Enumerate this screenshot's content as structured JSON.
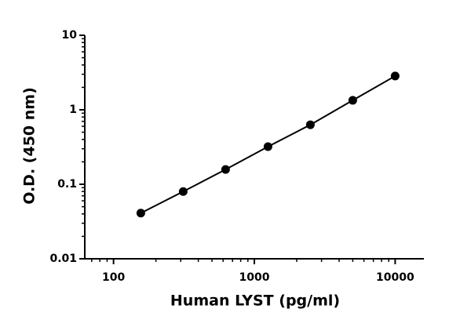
{
  "chart_data": {
    "type": "scatter",
    "x_label": "Human LYST (pg/ml)",
    "y_label": "O.D. (450 nm)",
    "x": [
      156.25,
      312.5,
      625,
      1250,
      2500,
      5000,
      10000
    ],
    "series": [
      {
        "color": "#000000",
        "values": [
          0.041,
          0.08,
          0.158,
          0.32,
          0.63,
          1.34,
          2.84
        ]
      }
    ],
    "line": true,
    "xscale": "log",
    "yscale": "log",
    "xlim": [
      62.5,
      16000
    ],
    "ylim": [
      0.01,
      10
    ],
    "xticks": [
      100,
      1000,
      10000
    ],
    "yticks": [
      0.01,
      0.1,
      1,
      10
    ],
    "xminor_ticks": [
      70,
      80,
      90,
      200,
      300,
      400,
      500,
      600,
      700,
      800,
      900,
      2000,
      3000,
      4000,
      5000,
      6000,
      7000,
      8000,
      9000
    ],
    "yminor_ticks": [
      0.02,
      0.03,
      0.04,
      0.05,
      0.06,
      0.07,
      0.08,
      0.09,
      0.2,
      0.3,
      0.4,
      0.5,
      0.6,
      0.7,
      0.8,
      0.9,
      2,
      3,
      4,
      5,
      6,
      7,
      8,
      9
    ],
    "grid": false
  }
}
